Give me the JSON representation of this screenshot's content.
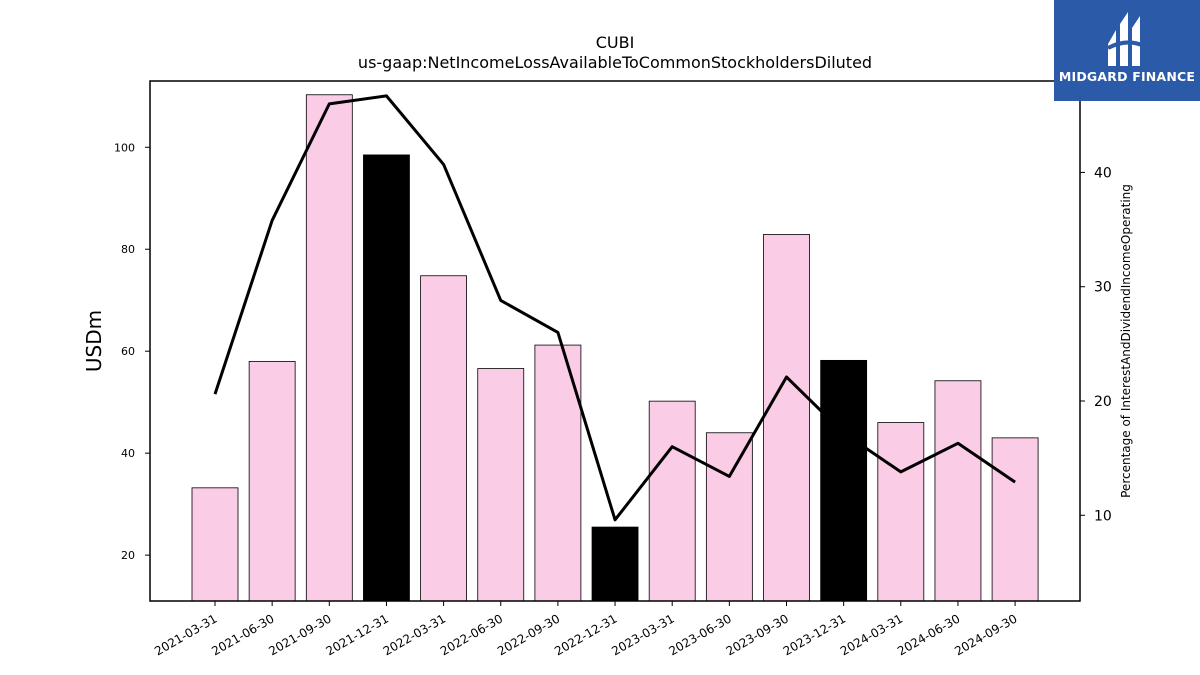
{
  "logo": {
    "text": "MIDGARD FINANCE",
    "icon": "midgard-logo-mark",
    "background": "#2a5aa8"
  },
  "chart_data": {
    "type": "bar",
    "title": "CUBI",
    "subtitle": "us-gaap:NetIncomeLossAvailableToCommonStockholdersDiluted",
    "ylabel": "USDm",
    "y2label": "Percentage of InterestAndDividendIncomeOperating",
    "ylim": [
      11,
      113
    ],
    "y2lim": [
      2.5,
      48
    ],
    "yticks": [
      20,
      40,
      60,
      80,
      100
    ],
    "y2ticks": [
      10,
      20,
      30,
      40
    ],
    "grid": false,
    "categories": [
      "2021-03-31",
      "2021-06-30",
      "2021-09-30",
      "2021-12-31",
      "2022-03-31",
      "2022-06-30",
      "2022-09-30",
      "2022-12-31",
      "2023-03-31",
      "2023-06-30",
      "2023-09-30",
      "2023-12-31",
      "2024-03-31",
      "2024-06-30",
      "2024-09-30"
    ],
    "series": [
      {
        "axis": "left",
        "kind": "bar",
        "values": [
          33.2,
          58.0,
          110.3,
          98.5,
          74.8,
          56.6,
          61.2,
          25.5,
          50.2,
          44.0,
          82.9,
          58.2,
          46.0,
          54.2,
          43.0
        ],
        "highlight": [
          false,
          false,
          false,
          true,
          false,
          false,
          false,
          true,
          false,
          false,
          false,
          true,
          false,
          false,
          false
        ],
        "color": "#fbcce6",
        "highlight_color": "#000000"
      },
      {
        "axis": "right",
        "kind": "line",
        "values": [
          20.6,
          35.8,
          46.0,
          46.7,
          40.7,
          28.8,
          26.0,
          9.6,
          16.0,
          13.4,
          22.1,
          17.2,
          13.8,
          16.3,
          12.9
        ],
        "color": "#000000"
      }
    ]
  }
}
